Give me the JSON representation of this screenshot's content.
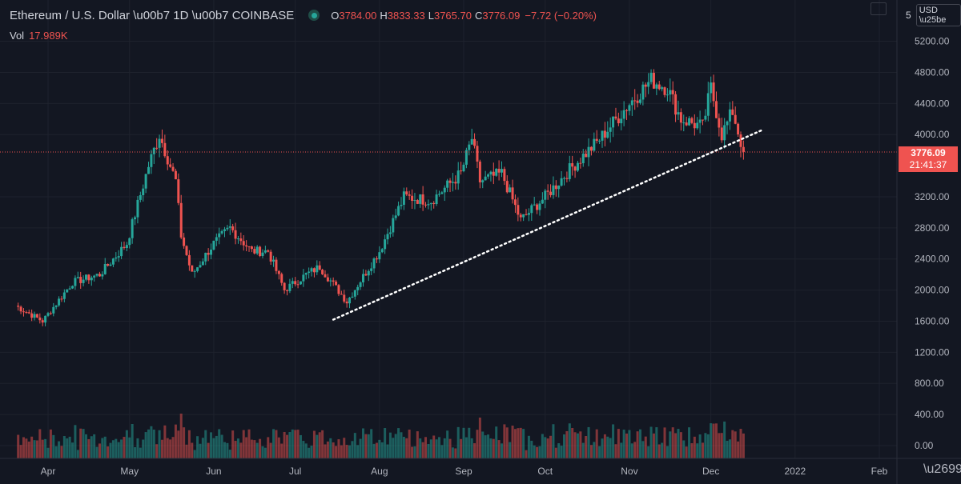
{
  "legend": {
    "symbol": "Ethereum / U.S. Dollar",
    "interval": "1D",
    "exchange": "COINBASE",
    "open_key": "O",
    "open": "3784.00",
    "high_key": "H",
    "high": "3833.33",
    "low_key": "L",
    "low": "3765.70",
    "close_key": "C",
    "close": "3776.09",
    "change": "−7.72 (−0.20%)",
    "volume_label": "Vol",
    "volume": "17.989K"
  },
  "axis": {
    "top_label": "5",
    "currency": "USD",
    "price_ticks": [
      "5200.00",
      "4800.00",
      "4400.00",
      "4000.00",
      "3200.00",
      "2800.00",
      "2400.00",
      "2000.00",
      "1600.00",
      "1200.00",
      "800.00",
      "400.00",
      "0.00"
    ],
    "time_ticks": [
      "Apr",
      "May",
      "Jun",
      "Jul",
      "Aug",
      "Sep",
      "Oct",
      "Nov",
      "Dec",
      "2022",
      "Feb"
    ]
  },
  "last_price": {
    "price": "3776.09",
    "countdown": "21:41:37"
  },
  "colors": {
    "background": "#131722",
    "up": "#26a69a",
    "down": "#ef5350",
    "grid": "#1e222d",
    "trendline": "#ffffff"
  },
  "icons": {
    "settings": "gear-icon",
    "status": "market-status-dot-icon"
  },
  "chart_data": {
    "type": "candlestick",
    "x_unit": "date (2021)",
    "y_unit": "USD",
    "anchors": [
      [
        "2021-03-20",
        1800
      ],
      [
        "2021-03-30",
        1600
      ],
      [
        "2021-04-10",
        2100
      ],
      [
        "2021-04-20",
        2200
      ],
      [
        "2021-04-30",
        2600
      ],
      [
        "2021-05-08",
        3600
      ],
      [
        "2021-05-12",
        4000
      ],
      [
        "2021-05-18",
        3400
      ],
      [
        "2021-05-20",
        2700
      ],
      [
        "2021-05-24",
        2200
      ],
      [
        "2021-06-01",
        2600
      ],
      [
        "2021-06-07",
        2800
      ],
      [
        "2021-06-15",
        2500
      ],
      [
        "2021-06-21",
        2500
      ],
      [
        "2021-06-27",
        2000
      ],
      [
        "2021-07-05",
        2200
      ],
      [
        "2021-07-10",
        2300
      ],
      [
        "2021-07-20",
        1850
      ],
      [
        "2021-08-01",
        2500
      ],
      [
        "2021-08-10",
        3200
      ],
      [
        "2021-08-20",
        3150
      ],
      [
        "2021-08-31",
        3500
      ],
      [
        "2021-09-04",
        3950
      ],
      [
        "2021-09-07",
        3400
      ],
      [
        "2021-09-15",
        3500
      ],
      [
        "2021-09-22",
        2900
      ],
      [
        "2021-10-01",
        3200
      ],
      [
        "2021-10-10",
        3550
      ],
      [
        "2021-10-20",
        3900
      ],
      [
        "2021-11-01",
        4400
      ],
      [
        "2021-11-09",
        4700
      ],
      [
        "2021-11-15",
        4600
      ],
      [
        "2021-11-20",
        4200
      ],
      [
        "2021-11-28",
        4100
      ],
      [
        "2021-12-01",
        4600
      ],
      [
        "2021-12-05",
        4000
      ],
      [
        "2021-12-09",
        4300
      ],
      [
        "2021-12-13",
        3776
      ]
    ],
    "volume_range": [
      0,
      1300
    ],
    "trendline": {
      "from": [
        "2021-07-15",
        1620
      ],
      "to": [
        "2021-12-20",
        4060
      ],
      "style": "dotted"
    },
    "ylim": [
      0,
      5400
    ],
    "xlim": [
      "2021-03-19",
      "2022-02-20"
    ]
  }
}
